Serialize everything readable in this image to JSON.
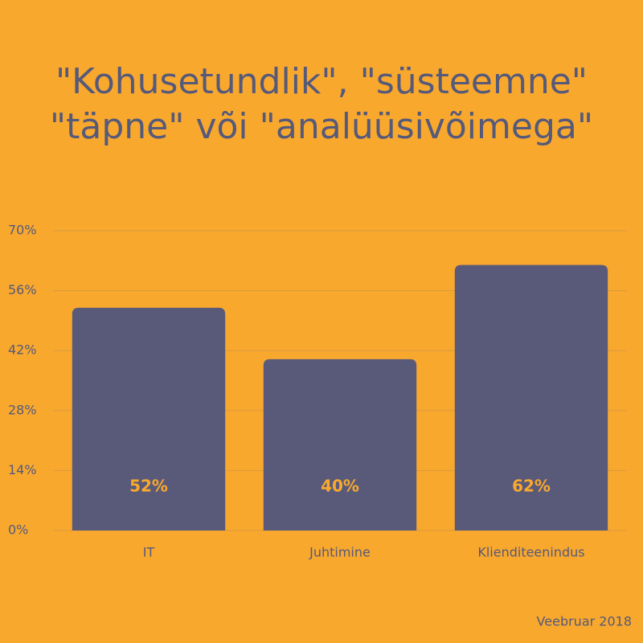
{
  "chart_data": {
    "type": "bar",
    "title": [
      "\"Kohusetundlik\", \"süsteemne\"",
      "\"täpne\" või \"analüüsivõimega\""
    ],
    "categories": [
      "IT",
      "Juhtimine",
      "Klienditeenindus"
    ],
    "values": [
      52,
      40,
      62
    ],
    "value_labels": [
      "52%",
      "40%",
      "62%"
    ],
    "color": "#595a7a",
    "ylim": [
      0,
      70
    ],
    "yticks": [
      {
        "value": 0,
        "label": "0%"
      },
      {
        "value": 14,
        "label": "14%"
      },
      {
        "value": 28,
        "label": "28%"
      },
      {
        "value": 42,
        "label": "42%"
      },
      {
        "value": 56,
        "label": "56%"
      },
      {
        "value": 70,
        "label": "70%"
      }
    ],
    "grid": true,
    "caption": "Veebruar 2018"
  }
}
